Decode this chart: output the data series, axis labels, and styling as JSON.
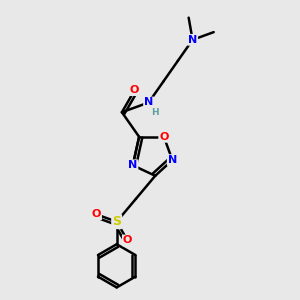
{
  "background_color": "#e8e8e8",
  "bond_color": "#000000",
  "bond_width": 1.8,
  "atom_colors": {
    "N": "#0000ff",
    "O": "#ff0000",
    "S": "#cccc00",
    "H": "#5f9ea0",
    "C": "#000000"
  },
  "font_size_atoms": 8,
  "font_size_small": 6.5
}
